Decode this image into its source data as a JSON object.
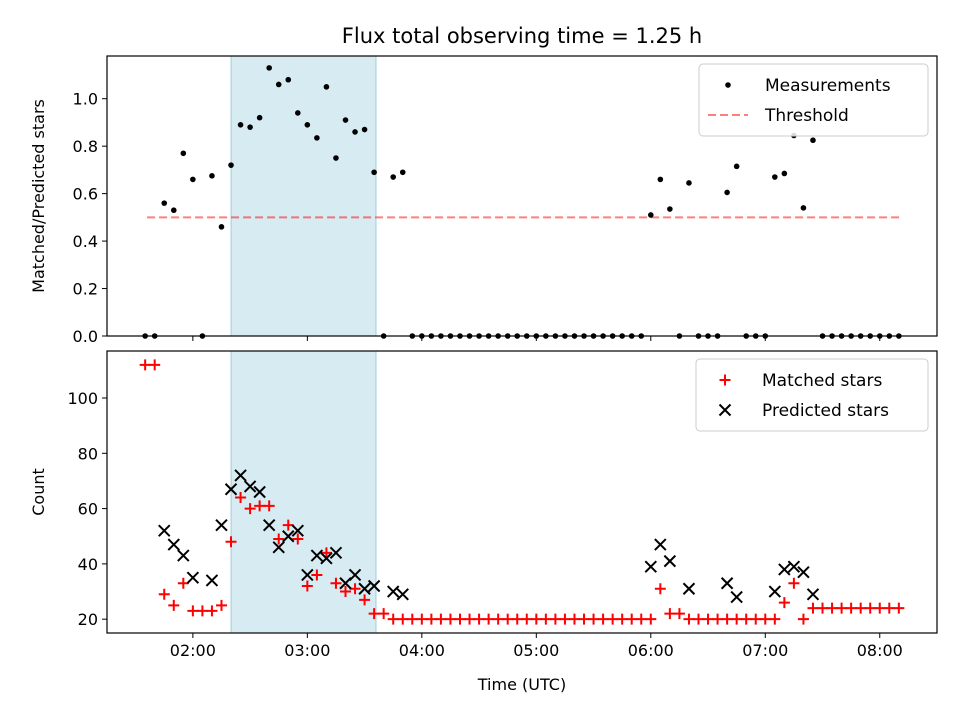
{
  "title": "Flux total observing time = 1.25 h",
  "chart_data": [
    {
      "type": "scatter",
      "title": "Flux total observing time = 1.25 h",
      "xlabel": "",
      "ylabel": "Matched/Predicted stars",
      "x_axis_format": "HH:MM UTC",
      "xlim": [
        "01:15",
        "08:30"
      ],
      "ylim": [
        0,
        1.18
      ],
      "yticks": [
        0.0,
        0.2,
        0.4,
        0.6,
        0.8,
        1.0
      ],
      "ytick_labels": [
        "0.0",
        "0.2",
        "0.4",
        "0.6",
        "0.8",
        "1.0"
      ],
      "grid": false,
      "legend_position": "upper right",
      "highlight_band": {
        "x_start": "02:20",
        "x_end": "03:36",
        "color": "#add8e6"
      },
      "threshold": {
        "name": "Threshold",
        "y": 0.5,
        "x_start": "01:36",
        "x_end": "08:12",
        "color": "#ff0000"
      },
      "series": [
        {
          "name": "Measurements",
          "color": "#000000",
          "marker": "dot",
          "points": [
            [
              "01:35",
              0.0
            ],
            [
              "01:40",
              0.0
            ],
            [
              "01:45",
              0.56
            ],
            [
              "01:50",
              0.53
            ],
            [
              "01:55",
              0.77
            ],
            [
              "02:00",
              0.66
            ],
            [
              "02:05",
              0.0
            ],
            [
              "02:10",
              0.675
            ],
            [
              "02:15",
              0.46
            ],
            [
              "02:20",
              0.72
            ],
            [
              "02:25",
              0.89
            ],
            [
              "02:30",
              0.88
            ],
            [
              "02:35",
              0.92
            ],
            [
              "02:40",
              1.13
            ],
            [
              "02:45",
              1.06
            ],
            [
              "02:50",
              1.08
            ],
            [
              "02:55",
              0.94
            ],
            [
              "03:00",
              0.89
            ],
            [
              "03:05",
              0.835
            ],
            [
              "03:10",
              1.05
            ],
            [
              "03:15",
              0.75
            ],
            [
              "03:20",
              0.91
            ],
            [
              "03:25",
              0.86
            ],
            [
              "03:30",
              0.87
            ],
            [
              "03:35",
              0.69
            ],
            [
              "03:40",
              0.0
            ],
            [
              "03:45",
              0.67
            ],
            [
              "03:50",
              0.69
            ],
            [
              "03:55",
              0.0
            ],
            [
              "04:00",
              0.0
            ],
            [
              "04:05",
              0.0
            ],
            [
              "04:10",
              0.0
            ],
            [
              "04:15",
              0.0
            ],
            [
              "04:20",
              0.0
            ],
            [
              "04:25",
              0.0
            ],
            [
              "04:30",
              0.0
            ],
            [
              "04:35",
              0.0
            ],
            [
              "04:40",
              0.0
            ],
            [
              "04:45",
              0.0
            ],
            [
              "04:50",
              0.0
            ],
            [
              "04:55",
              0.0
            ],
            [
              "05:00",
              0.0
            ],
            [
              "05:05",
              0.0
            ],
            [
              "05:10",
              0.0
            ],
            [
              "05:15",
              0.0
            ],
            [
              "05:20",
              0.0
            ],
            [
              "05:25",
              0.0
            ],
            [
              "05:30",
              0.0
            ],
            [
              "05:35",
              0.0
            ],
            [
              "05:40",
              0.0
            ],
            [
              "05:45",
              0.0
            ],
            [
              "05:50",
              0.0
            ],
            [
              "05:55",
              0.0
            ],
            [
              "06:00",
              0.51
            ],
            [
              "06:05",
              0.66
            ],
            [
              "06:10",
              0.535
            ],
            [
              "06:15",
              0.0
            ],
            [
              "06:20",
              0.645
            ],
            [
              "06:25",
              0.0
            ],
            [
              "06:30",
              0.0
            ],
            [
              "06:35",
              0.0
            ],
            [
              "06:40",
              0.605
            ],
            [
              "06:45",
              0.715
            ],
            [
              "06:50",
              0.0
            ],
            [
              "06:55",
              0.0
            ],
            [
              "07:00",
              0.0
            ],
            [
              "07:05",
              0.67
            ],
            [
              "07:10",
              0.685
            ],
            [
              "07:15",
              0.845
            ],
            [
              "07:20",
              0.54
            ],
            [
              "07:25",
              0.825
            ],
            [
              "07:30",
              0.0
            ],
            [
              "07:35",
              0.0
            ],
            [
              "07:40",
              0.0
            ],
            [
              "07:45",
              0.0
            ],
            [
              "07:50",
              0.0
            ],
            [
              "07:55",
              0.0
            ],
            [
              "08:00",
              0.0
            ],
            [
              "08:05",
              0.0
            ],
            [
              "08:10",
              0.0
            ]
          ]
        }
      ]
    },
    {
      "type": "scatter",
      "title": "",
      "xlabel": "Time (UTC)",
      "ylabel": "Count",
      "x_axis_format": "HH:MM UTC",
      "xlim": [
        "01:15",
        "08:30"
      ],
      "ylim": [
        15,
        117
      ],
      "xticks": [
        "02:00",
        "03:00",
        "04:00",
        "05:00",
        "06:00",
        "07:00",
        "08:00"
      ],
      "yticks": [
        20,
        40,
        60,
        80,
        100
      ],
      "ytick_labels": [
        "20",
        "40",
        "60",
        "80",
        "100"
      ],
      "grid": false,
      "legend_position": "upper right",
      "highlight_band": {
        "x_start": "02:20",
        "x_end": "03:36",
        "color": "#add8e6"
      },
      "series": [
        {
          "name": "Matched stars",
          "color": "#ff0000",
          "marker": "plus",
          "points": [
            [
              "01:35",
              112
            ],
            [
              "01:40",
              112
            ],
            [
              "01:45",
              29
            ],
            [
              "01:50",
              25
            ],
            [
              "01:55",
              33
            ],
            [
              "02:00",
              23
            ],
            [
              "02:05",
              23
            ],
            [
              "02:10",
              23
            ],
            [
              "02:15",
              25
            ],
            [
              "02:20",
              48
            ],
            [
              "02:25",
              64
            ],
            [
              "02:30",
              60
            ],
            [
              "02:35",
              61
            ],
            [
              "02:40",
              61
            ],
            [
              "02:45",
              49
            ],
            [
              "02:50",
              54
            ],
            [
              "02:55",
              49
            ],
            [
              "03:00",
              32
            ],
            [
              "03:05",
              36
            ],
            [
              "03:10",
              44
            ],
            [
              "03:15",
              33
            ],
            [
              "03:20",
              30
            ],
            [
              "03:25",
              31
            ],
            [
              "03:30",
              27
            ],
            [
              "03:35",
              22
            ],
            [
              "03:40",
              22
            ],
            [
              "03:45",
              20
            ],
            [
              "03:50",
              20
            ],
            [
              "03:55",
              20
            ],
            [
              "04:00",
              20
            ],
            [
              "04:05",
              20
            ],
            [
              "04:10",
              20
            ],
            [
              "04:15",
              20
            ],
            [
              "04:20",
              20
            ],
            [
              "04:25",
              20
            ],
            [
              "04:30",
              20
            ],
            [
              "04:35",
              20
            ],
            [
              "04:40",
              20
            ],
            [
              "04:45",
              20
            ],
            [
              "04:50",
              20
            ],
            [
              "04:55",
              20
            ],
            [
              "05:00",
              20
            ],
            [
              "05:05",
              20
            ],
            [
              "05:10",
              20
            ],
            [
              "05:15",
              20
            ],
            [
              "05:20",
              20
            ],
            [
              "05:25",
              20
            ],
            [
              "05:30",
              20
            ],
            [
              "05:35",
              20
            ],
            [
              "05:40",
              20
            ],
            [
              "05:45",
              20
            ],
            [
              "05:50",
              20
            ],
            [
              "05:55",
              20
            ],
            [
              "06:00",
              20
            ],
            [
              "06:05",
              31
            ],
            [
              "06:10",
              22
            ],
            [
              "06:15",
              22
            ],
            [
              "06:20",
              20
            ],
            [
              "06:25",
              20
            ],
            [
              "06:30",
              20
            ],
            [
              "06:35",
              20
            ],
            [
              "06:40",
              20
            ],
            [
              "06:45",
              20
            ],
            [
              "06:50",
              20
            ],
            [
              "06:55",
              20
            ],
            [
              "07:00",
              20
            ],
            [
              "07:05",
              20
            ],
            [
              "07:10",
              26
            ],
            [
              "07:15",
              33
            ],
            [
              "07:20",
              20
            ],
            [
              "07:25",
              24
            ],
            [
              "07:30",
              24
            ],
            [
              "07:35",
              24
            ],
            [
              "07:40",
              24
            ],
            [
              "07:45",
              24
            ],
            [
              "07:50",
              24
            ],
            [
              "07:55",
              24
            ],
            [
              "08:00",
              24
            ],
            [
              "08:05",
              24
            ],
            [
              "08:10",
              24
            ]
          ]
        },
        {
          "name": "Predicted stars",
          "color": "#000000",
          "marker": "x",
          "points": [
            [
              "01:45",
              52
            ],
            [
              "01:50",
              47
            ],
            [
              "01:55",
              43
            ],
            [
              "02:00",
              35
            ],
            [
              "02:10",
              34
            ],
            [
              "02:15",
              54
            ],
            [
              "02:20",
              67
            ],
            [
              "02:25",
              72
            ],
            [
              "02:30",
              68
            ],
            [
              "02:35",
              66
            ],
            [
              "02:40",
              54
            ],
            [
              "02:45",
              46
            ],
            [
              "02:50",
              50
            ],
            [
              "02:55",
              52
            ],
            [
              "03:00",
              36
            ],
            [
              "03:05",
              43
            ],
            [
              "03:10",
              42
            ],
            [
              "03:15",
              44
            ],
            [
              "03:20",
              33
            ],
            [
              "03:25",
              36
            ],
            [
              "03:30",
              31
            ],
            [
              "03:35",
              32
            ],
            [
              "03:45",
              30
            ],
            [
              "03:50",
              29
            ],
            [
              "06:00",
              39
            ],
            [
              "06:05",
              47
            ],
            [
              "06:10",
              41
            ],
            [
              "06:20",
              31
            ],
            [
              "06:40",
              33
            ],
            [
              "06:45",
              28
            ],
            [
              "07:05",
              30
            ],
            [
              "07:10",
              38
            ],
            [
              "07:15",
              39
            ],
            [
              "07:20",
              37
            ],
            [
              "07:25",
              29
            ]
          ]
        }
      ]
    }
  ]
}
